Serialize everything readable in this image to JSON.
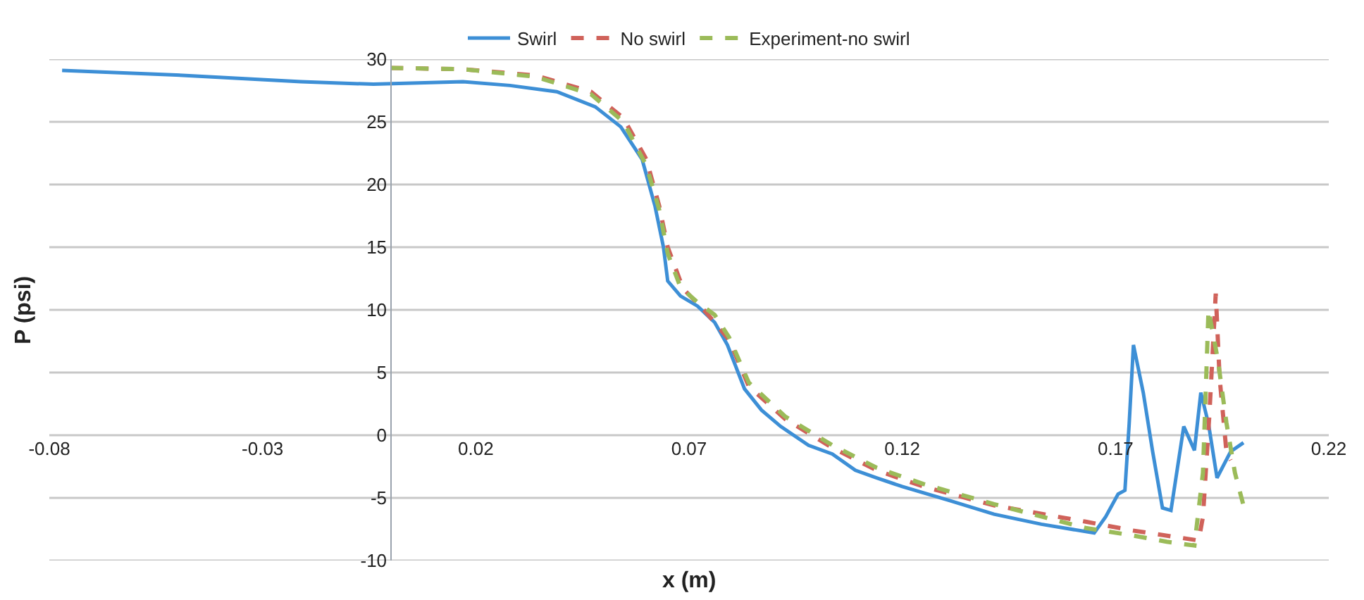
{
  "chart_data": {
    "type": "line",
    "xlabel": "x (m)",
    "ylabel": "P (psi)",
    "xlim": [
      -0.08,
      0.22
    ],
    "xticks": [
      -0.08,
      -0.03,
      0.02,
      0.07,
      0.12,
      0.17,
      0.22
    ],
    "ylim": [
      -10,
      30
    ],
    "yticks": [
      -10,
      -5,
      0,
      5,
      10,
      15,
      20,
      25,
      30
    ],
    "grid": "y",
    "legend": "top",
    "marker": "none",
    "series": [
      {
        "name": "Swirl",
        "color": "#3d8fd6",
        "line_style": "solid",
        "x": [
          -0.077,
          -0.048,
          -0.021,
          -0.004,
          0.017,
          0.028,
          0.039,
          0.048,
          0.054,
          0.059,
          0.062,
          0.064,
          0.065,
          0.068,
          0.072,
          0.076,
          0.079,
          0.083,
          0.087,
          0.0915,
          0.098,
          0.1036,
          0.109,
          0.114,
          0.12,
          0.131,
          0.1415,
          0.1526,
          0.165,
          0.1677,
          0.1706,
          0.1722,
          0.1732,
          0.1742,
          0.1765,
          0.1787,
          0.181,
          0.183,
          0.186,
          0.1885,
          0.19,
          0.1918,
          0.1938,
          0.197,
          0.2
        ],
        "values": [
          29.1,
          28.7,
          28.2,
          28.0,
          28.2,
          27.9,
          27.4,
          26.2,
          24.6,
          22.0,
          18.3,
          15.0,
          12.3,
          11.1,
          10.3,
          9.0,
          7.2,
          3.7,
          2.0,
          0.7,
          -0.8,
          -1.5,
          -2.8,
          -3.4,
          -4.1,
          -5.2,
          -6.3,
          -7.1,
          -7.8,
          -6.5,
          -4.7,
          -4.4,
          0.9,
          7.2,
          3.4,
          -1.3,
          -5.8,
          -6.0,
          0.7,
          -1.2,
          3.4,
          0.9,
          -3.4,
          -1.3,
          -0.6
        ]
      },
      {
        "name": "No swirl",
        "color": "#d0625a",
        "line_style": "dashed",
        "x": [
          0.0,
          0.017,
          0.034,
          0.047,
          0.0546,
          0.06,
          0.063,
          0.065,
          0.0686,
          0.072,
          0.074,
          0.0794,
          0.084,
          0.0925,
          0.1036,
          0.114,
          0.125,
          0.1415,
          0.163,
          0.174,
          0.1895,
          0.1905,
          0.192,
          0.1935,
          0.1944,
          0.196,
          0.197
        ],
        "values": [
          29.3,
          29.2,
          28.7,
          27.4,
          25.3,
          22.0,
          18.3,
          15.0,
          11.7,
          10.5,
          9.8,
          7.6,
          3.9,
          1.3,
          -1.0,
          -2.8,
          -4.1,
          -5.6,
          -6.9,
          -7.6,
          -8.4,
          -6.5,
          1.6,
          11.3,
          4.6,
          -1.3,
          -2.0
        ]
      },
      {
        "name": "Experiment-no swirl",
        "color": "#9bbb59",
        "line_style": "dashed",
        "x": [
          0.0,
          0.017,
          0.034,
          0.047,
          0.0546,
          0.06,
          0.063,
          0.065,
          0.068,
          0.072,
          0.076,
          0.0794,
          0.084,
          0.0925,
          0.1036,
          0.114,
          0.125,
          0.1415,
          0.163,
          0.174,
          0.182,
          0.1885,
          0.1905,
          0.1918,
          0.194,
          0.196,
          0.198,
          0.2
        ],
        "values": [
          29.3,
          29.2,
          28.6,
          27.2,
          25.0,
          21.5,
          18.0,
          14.5,
          11.8,
          10.6,
          9.6,
          7.8,
          4.2,
          1.5,
          -0.8,
          -2.6,
          -3.9,
          -5.5,
          -7.4,
          -8.0,
          -8.5,
          -8.8,
          -3.0,
          10.0,
          6.0,
          1.0,
          -3.0,
          -5.6
        ]
      }
    ]
  }
}
